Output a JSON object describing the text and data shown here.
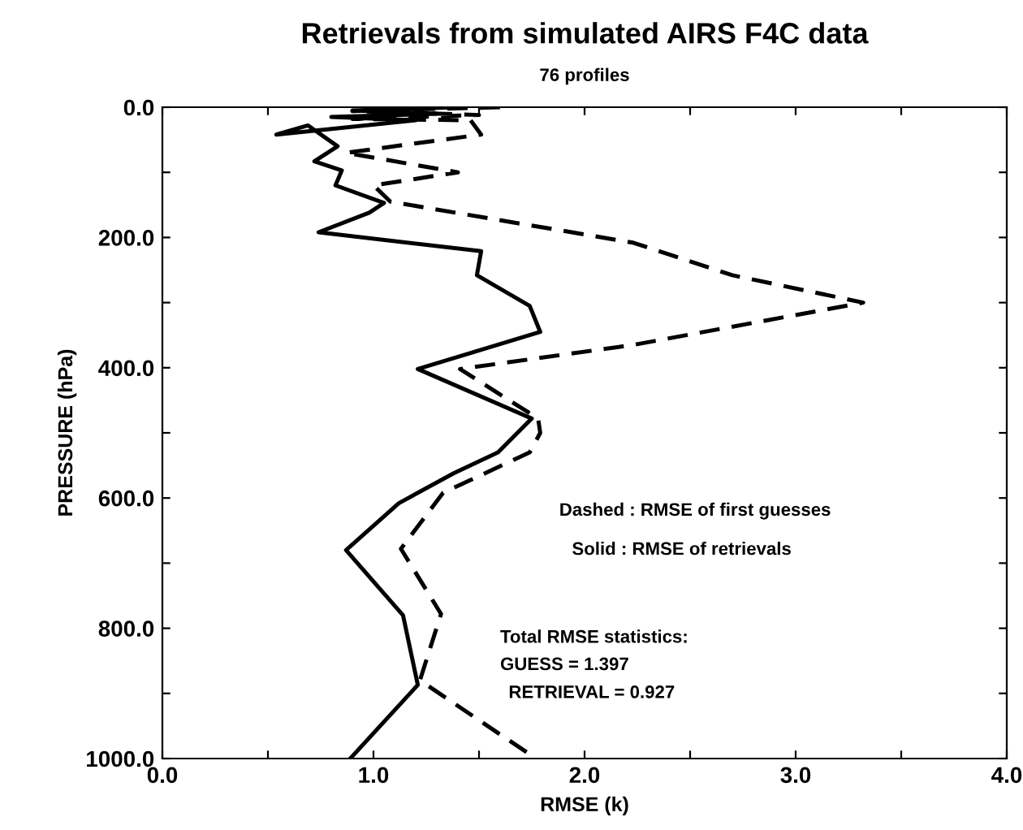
{
  "chart_data": {
    "type": "line",
    "title": "Retrievals from simulated AIRS F4C data",
    "subtitle": "76 profiles",
    "xlabel": "RMSE (k)",
    "ylabel": "PRESSURE (hPa)",
    "xlim": [
      0,
      4
    ],
    "ylim": [
      1000,
      0
    ],
    "xticks": [
      {
        "value": 0,
        "label": "0.0"
      },
      {
        "value": 0.5,
        "label": null
      },
      {
        "value": 1,
        "label": "1.0"
      },
      {
        "value": 1.5,
        "label": null
      },
      {
        "value": 2,
        "label": "2.0"
      },
      {
        "value": 2.5,
        "label": null
      },
      {
        "value": 3,
        "label": "3.0"
      },
      {
        "value": 3.5,
        "label": null
      },
      {
        "value": 4,
        "label": "4.0"
      }
    ],
    "yticks": [
      {
        "value": 0,
        "label": "0.0"
      },
      {
        "value": 100,
        "label": null
      },
      {
        "value": 200,
        "label": "200.0"
      },
      {
        "value": 300,
        "label": null
      },
      {
        "value": 400,
        "label": "400.0"
      },
      {
        "value": 500,
        "label": null
      },
      {
        "value": 600,
        "label": "600.0"
      },
      {
        "value": 700,
        "label": null
      },
      {
        "value": 800,
        "label": "800.0"
      },
      {
        "value": 900,
        "label": null
      },
      {
        "value": 1000,
        "label": "1000.0"
      }
    ],
    "grid": false,
    "marker": "none",
    "series": [
      {
        "color": "#000000",
        "line_style": "solid",
        "x": [
          1.4,
          0.9,
          1.3,
          0.8,
          1.2,
          0.54,
          0.69,
          0.83,
          0.72,
          0.85,
          0.82,
          1.05,
          0.98,
          0.74,
          1.51,
          1.49,
          1.74,
          1.79,
          1.21,
          1.75,
          1.59,
          1.38,
          1.12,
          0.87,
          1.14,
          1.21,
          0.89
        ],
        "values": [
          0,
          5,
          10,
          15,
          20,
          42,
          28,
          60,
          83,
          97,
          120,
          147,
          162,
          192,
          221,
          258,
          305,
          345,
          402,
          478,
          530,
          562,
          608,
          680,
          780,
          887,
          1000
        ]
      },
      {
        "color": "#000000",
        "line_style": "dashed",
        "x": [
          1.6,
          0.9,
          1.5,
          0.9,
          1.46,
          1.51,
          0.87,
          1.4,
          1.0,
          1.08,
          2.23,
          2.7,
          3.32,
          2.23,
          1.41,
          1.78,
          1.79,
          1.74,
          1.33,
          1.13,
          1.32,
          1.22,
          1.77
        ],
        "values": [
          0,
          6,
          12,
          18,
          20,
          42,
          70,
          100,
          120,
          145,
          208,
          258,
          300,
          365,
          402,
          478,
          500,
          530,
          592,
          678,
          778,
          880,
          1000
        ]
      }
    ],
    "annotations": [
      "Dashed : RMSE of first guesses",
      "Solid : RMSE of retrievals",
      "Total RMSE statistics:",
      "GUESS = 1.397",
      "RETRIEVAL = 0.927"
    ]
  }
}
